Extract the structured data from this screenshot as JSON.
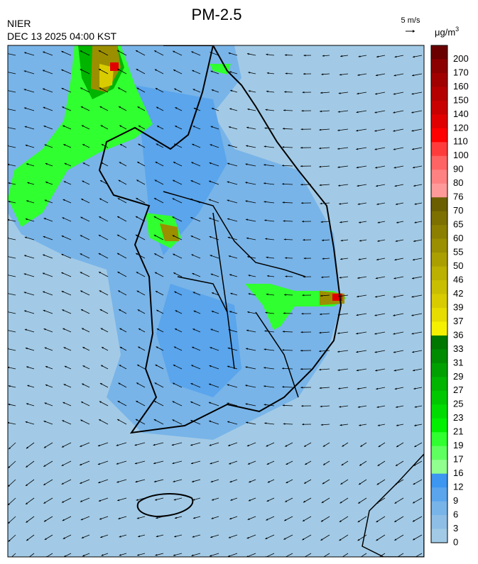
{
  "header": {
    "title": "PM-2.5",
    "agency": "NIER",
    "time": "DEC 13 2025 04:00 KST"
  },
  "wind_scale": {
    "label": "5 m/s"
  },
  "legend": {
    "unit": "μg/m",
    "unit_sup": "3",
    "levels": [
      200,
      170,
      160,
      150,
      140,
      120,
      110,
      100,
      90,
      80,
      76,
      70,
      65,
      60,
      55,
      50,
      46,
      42,
      39,
      37,
      36,
      33,
      31,
      29,
      27,
      25,
      23,
      21,
      19,
      17,
      16,
      12,
      9,
      6,
      3,
      0
    ],
    "colors": [
      "#6b0000",
      "#8b0000",
      "#a00000",
      "#b40000",
      "#c80000",
      "#e10000",
      "#ff0000",
      "#ff3c3c",
      "#ff6464",
      "#ff8282",
      "#ff9a9a",
      "#6b5e00",
      "#7d6f00",
      "#8c7f00",
      "#9b8f00",
      "#ab9f00",
      "#bcb000",
      "#cabe00",
      "#d8cc00",
      "#e6dc00",
      "#f5f000",
      "#007800",
      "#008c00",
      "#00a000",
      "#00b400",
      "#00c800",
      "#00dc00",
      "#00f000",
      "#30ff30",
      "#60ff60",
      "#90ff90",
      "#3d96f0",
      "#5aa5ec",
      "#78b4e8",
      "#8ebee6",
      "#a2cae6"
    ]
  }
}
